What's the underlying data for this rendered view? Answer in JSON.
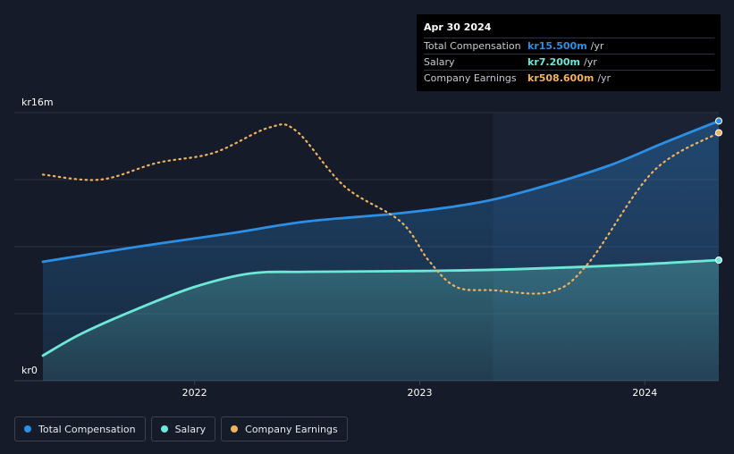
{
  "tooltip": {
    "date": "Apr 30 2024",
    "rows": [
      {
        "label": "Total Compensation",
        "value": "kr15.500m",
        "unit": "/yr",
        "color": "#2d8fe3"
      },
      {
        "label": "Salary",
        "value": "kr7.200m",
        "unit": "/yr",
        "color": "#6ee7d6"
      },
      {
        "label": "Company Earnings",
        "value": "kr508.600m",
        "unit": "/yr",
        "color": "#f0b25e"
      }
    ]
  },
  "legend": [
    {
      "label": "Total Compensation",
      "color": "#2d8fe3"
    },
    {
      "label": "Salary",
      "color": "#6ee7d6"
    },
    {
      "label": "Company Earnings",
      "color": "#f0b25e"
    }
  ],
  "chart_data": {
    "type": "line",
    "y_top_label": "kr16m",
    "y_bottom_label": "kr0",
    "ylim": [
      0,
      16
    ],
    "x_range": [
      "2021-04-30",
      "2024-04-30"
    ],
    "x_ticks": [
      "2022",
      "2023",
      "2024"
    ],
    "highlight_start": "2023-04-30",
    "series": [
      {
        "name": "Total Compensation",
        "color": "#2d8fe3",
        "area": true,
        "points": [
          [
            "2021-04-30",
            7.1
          ],
          [
            "2021-10-01",
            8.0
          ],
          [
            "2022-03-01",
            8.8
          ],
          [
            "2022-07-01",
            9.5
          ],
          [
            "2022-12-01",
            10.0
          ],
          [
            "2023-04-01",
            10.6
          ],
          [
            "2023-07-01",
            11.4
          ],
          [
            "2023-11-01",
            12.8
          ],
          [
            "2024-02-01",
            14.2
          ],
          [
            "2024-04-30",
            15.5
          ]
        ]
      },
      {
        "name": "Salary",
        "color": "#6ee7d6",
        "area": true,
        "points": [
          [
            "2021-04-30",
            1.5
          ],
          [
            "2021-07-01",
            2.8
          ],
          [
            "2021-10-01",
            4.3
          ],
          [
            "2022-01-01",
            5.6
          ],
          [
            "2022-04-01",
            6.4
          ],
          [
            "2022-07-01",
            6.5
          ],
          [
            "2023-01-01",
            6.55
          ],
          [
            "2023-06-01",
            6.65
          ],
          [
            "2023-12-01",
            6.9
          ],
          [
            "2024-04-30",
            7.2
          ]
        ]
      },
      {
        "name": "Company Earnings",
        "color": "#f0b25e",
        "area": false,
        "dashed": true,
        "points": [
          [
            "2021-04-30",
            12.3
          ],
          [
            "2021-08-01",
            12.0
          ],
          [
            "2021-11-01",
            13.0
          ],
          [
            "2022-02-01",
            13.6
          ],
          [
            "2022-05-01",
            15.1
          ],
          [
            "2022-06-15",
            14.9
          ],
          [
            "2022-09-01",
            11.6
          ],
          [
            "2022-12-01",
            9.5
          ],
          [
            "2023-01-15",
            7.2
          ],
          [
            "2023-03-01",
            5.6
          ],
          [
            "2023-05-01",
            5.4
          ],
          [
            "2023-08-01",
            5.3
          ],
          [
            "2023-10-01",
            7.0
          ],
          [
            "2024-01-15",
            12.5
          ],
          [
            "2024-04-30",
            14.8
          ]
        ]
      }
    ]
  }
}
